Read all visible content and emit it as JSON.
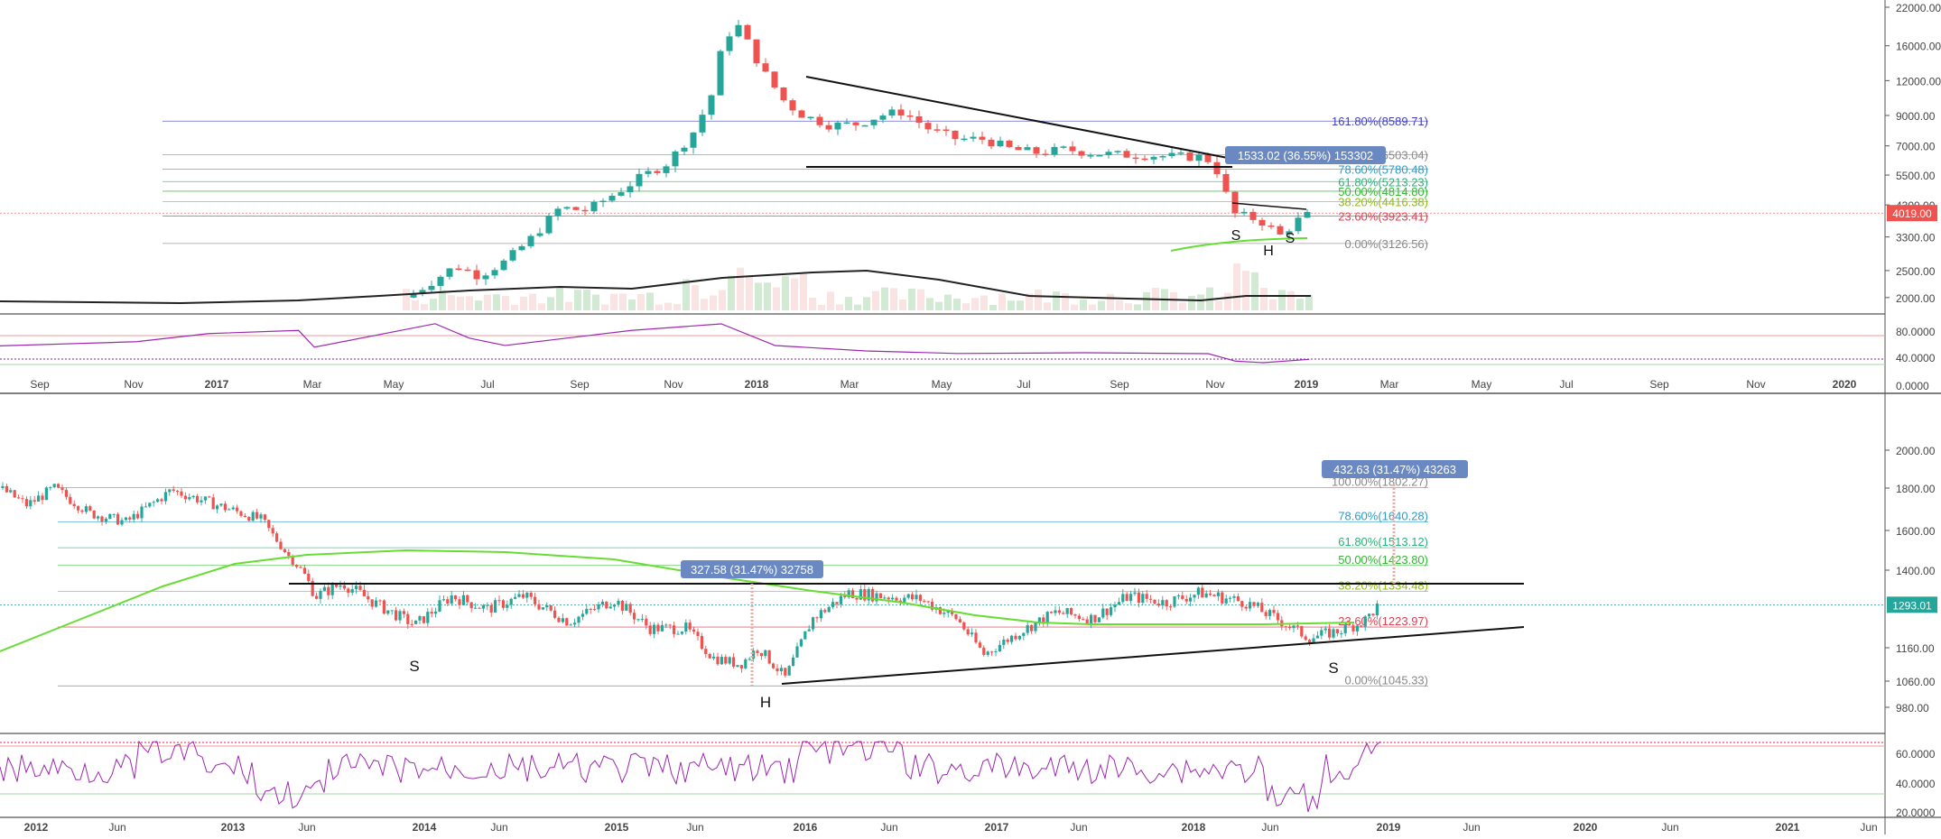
{
  "chart_data": [
    {
      "type": "candlestick",
      "yscale": "log",
      "y_ticks": [
        "22000.00",
        "16000.00",
        "12000.00",
        "9000.00",
        "7000.00",
        "5500.00",
        "4300.00",
        "3300.00",
        "2500.00",
        "2000.00"
      ],
      "x_ticks": [
        "Sep",
        "Nov",
        "2017",
        "Mar",
        "May",
        "Jul",
        "Sep",
        "Nov",
        "2018",
        "Mar",
        "May",
        "Jul",
        "Sep",
        "Nov",
        "2019",
        "Mar",
        "May",
        "Jul",
        "Sep",
        "Nov",
        "2020"
      ],
      "fib_levels": [
        {
          "label": "161.80%(8589.71)",
          "value": 8589.71,
          "color": "#3f3fbf"
        },
        {
          "label": "100.00%(6503.04)",
          "value": 6503.04,
          "color": "#888888"
        },
        {
          "label": "78.60%(5780.48)",
          "value": 5780.48,
          "color": "#2a9bc9"
        },
        {
          "label": "61.80%(5213.23)",
          "value": 5213.23,
          "color": "#2ab27a"
        },
        {
          "label": "50.00%(4814.80)",
          "value": 4814.8,
          "color": "#33b533"
        },
        {
          "label": "38.20%(4416.38)",
          "value": 4416.38,
          "color": "#8dbb19"
        },
        {
          "label": "23.60%(3923.41)",
          "value": 3923.41,
          "color": "#e04050"
        },
        {
          "label": "0.00%(3126.56)",
          "value": 3126.56,
          "color": "#888888"
        }
      ],
      "measure_label": "1533.02 (36.55%) 153302",
      "price_tag": "4019.00",
      "pattern_labels": [
        "S",
        "H",
        "S"
      ],
      "rsi_ticks": [
        "80.0000",
        "40.0000",
        "0.0000"
      ]
    },
    {
      "type": "candlestick",
      "y_ticks": [
        "2000.00",
        "1800.00",
        "1600.00",
        "1400.00",
        "1160.00",
        "1060.00",
        "980.00"
      ],
      "x_ticks": [
        "2012",
        "Jun",
        "2013",
        "Jun",
        "2014",
        "Jun",
        "2015",
        "Jun",
        "2016",
        "Jun",
        "2017",
        "Jun",
        "2018",
        "Jun",
        "2019",
        "Jun",
        "2020",
        "Jun",
        "2021",
        "Jun"
      ],
      "fib_levels": [
        {
          "label": "100.00%(1802.27)",
          "value": 1802.27,
          "color": "#888888"
        },
        {
          "label": "78.60%(1640.28)",
          "value": 1640.28,
          "color": "#2a9bc9"
        },
        {
          "label": "61.80%(1513.12)",
          "value": 1513.12,
          "color": "#2ab27a"
        },
        {
          "label": "50.00%(1423.80)",
          "value": 1423.8,
          "color": "#33b533"
        },
        {
          "label": "38.20%(1334.48)",
          "value": 1334.48,
          "color": "#8dbb19"
        },
        {
          "label": "23.60%(1223.97)",
          "value": 1223.97,
          "color": "#e04050"
        },
        {
          "label": "0.00%(1045.33)",
          "value": 1045.33,
          "color": "#888888"
        }
      ],
      "measure_labels": [
        "327.58 (31.47%) 32758",
        "432.63 (31.47%) 43263"
      ],
      "price_tag": "1293.01",
      "pattern_labels": [
        "S",
        "H",
        "S"
      ],
      "rsi_ticks": [
        "60.0000",
        "40.0000",
        "20.0000"
      ]
    }
  ],
  "colors": {
    "up": "#26a69a",
    "down": "#ef5350",
    "fib_green": "#66dd33",
    "rsi": "#9c27b0",
    "tag_blue": "#6a89c2"
  }
}
